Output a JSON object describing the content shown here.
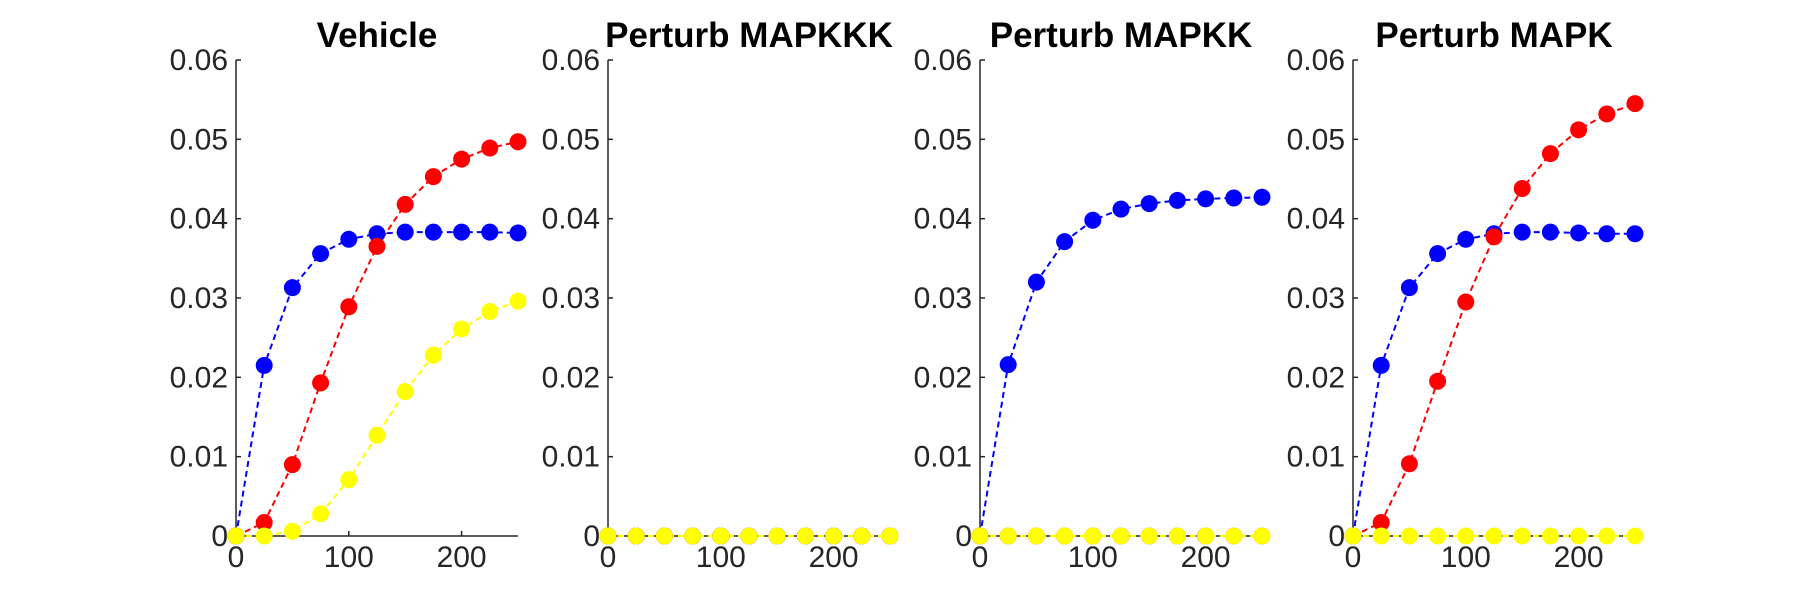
{
  "chart_data": [
    {
      "type": "line",
      "title": "Vehicle",
      "xlabel": "",
      "ylabel": "",
      "xlim": [
        0,
        250
      ],
      "ylim": [
        0,
        0.06
      ],
      "xticks": [
        "0",
        "100",
        "200"
      ],
      "yticks": [
        "0",
        "0.01",
        "0.02",
        "0.03",
        "0.04",
        "0.05",
        "0.06"
      ],
      "grid": false,
      "x": [
        0,
        25,
        50,
        75,
        100,
        125,
        150,
        175,
        200,
        225,
        250
      ],
      "series": [
        {
          "name": "blue",
          "color": "#0000ff",
          "values": [
            0,
            0.0215,
            0.0313,
            0.0356,
            0.0374,
            0.0381,
            0.0383,
            0.0383,
            0.0383,
            0.0383,
            0.0382
          ]
        },
        {
          "name": "red",
          "color": "#ff0000",
          "values": [
            0,
            0.0017,
            0.009,
            0.0193,
            0.0289,
            0.0365,
            0.0418,
            0.0453,
            0.0475,
            0.0489,
            0.0497
          ]
        },
        {
          "name": "yellow",
          "color": "#ffff00",
          "values": [
            0,
            0,
            0.0006,
            0.0028,
            0.0071,
            0.0127,
            0.0182,
            0.0228,
            0.0261,
            0.0283,
            0.0296
          ]
        }
      ]
    },
    {
      "type": "line",
      "title": "Perturb MAPKKK",
      "xlabel": "",
      "ylabel": "",
      "xlim": [
        0,
        250
      ],
      "ylim": [
        0,
        0.06
      ],
      "xticks": [
        "0",
        "100",
        "200"
      ],
      "yticks": [
        "0",
        "0.01",
        "0.02",
        "0.03",
        "0.04",
        "0.05",
        "0.06"
      ],
      "grid": false,
      "x": [
        0,
        25,
        50,
        75,
        100,
        125,
        150,
        175,
        200,
        225,
        250
      ],
      "series": [
        {
          "name": "blue",
          "color": "#0000ff",
          "values": [
            0,
            0,
            0,
            0,
            0,
            0,
            0,
            0,
            0,
            0,
            0
          ]
        },
        {
          "name": "red",
          "color": "#ff0000",
          "values": [
            0,
            0,
            0,
            0,
            0,
            0,
            0,
            0,
            0,
            0,
            0
          ]
        },
        {
          "name": "yellow",
          "color": "#ffff00",
          "values": [
            0,
            0,
            0,
            0,
            0,
            0,
            0,
            0,
            0,
            0,
            0
          ]
        }
      ]
    },
    {
      "type": "line",
      "title": "Perturb MAPKK",
      "xlabel": "",
      "ylabel": "",
      "xlim": [
        0,
        250
      ],
      "ylim": [
        0,
        0.06
      ],
      "xticks": [
        "0",
        "100",
        "200"
      ],
      "yticks": [
        "0",
        "0.01",
        "0.02",
        "0.03",
        "0.04",
        "0.05",
        "0.06"
      ],
      "grid": false,
      "x": [
        0,
        25,
        50,
        75,
        100,
        125,
        150,
        175,
        200,
        225,
        250
      ],
      "series": [
        {
          "name": "blue",
          "color": "#0000ff",
          "values": [
            0,
            0.0216,
            0.032,
            0.0371,
            0.0398,
            0.0412,
            0.0419,
            0.0423,
            0.0425,
            0.0426,
            0.0427
          ]
        },
        {
          "name": "red",
          "color": "#ff0000",
          "values": [
            0,
            0,
            0,
            0,
            0,
            0,
            0,
            0,
            0,
            0,
            0
          ]
        },
        {
          "name": "yellow",
          "color": "#ffff00",
          "values": [
            0,
            0,
            0,
            0,
            0,
            0,
            0,
            0,
            0,
            0,
            0
          ]
        }
      ]
    },
    {
      "type": "line",
      "title": "Perturb MAPK",
      "xlabel": "",
      "ylabel": "",
      "xlim": [
        0,
        250
      ],
      "ylim": [
        0,
        0.06
      ],
      "xticks": [
        "0",
        "100",
        "200"
      ],
      "yticks": [
        "0",
        "0.01",
        "0.02",
        "0.03",
        "0.04",
        "0.05",
        "0.06"
      ],
      "grid": false,
      "x": [
        0,
        25,
        50,
        75,
        100,
        125,
        150,
        175,
        200,
        225,
        250
      ],
      "series": [
        {
          "name": "blue",
          "color": "#0000ff",
          "values": [
            0,
            0.0215,
            0.0313,
            0.0356,
            0.0374,
            0.0381,
            0.0383,
            0.0383,
            0.0382,
            0.0381,
            0.0381
          ]
        },
        {
          "name": "red",
          "color": "#ff0000",
          "values": [
            0,
            0.0017,
            0.0091,
            0.0195,
            0.0295,
            0.0377,
            0.0438,
            0.0482,
            0.0512,
            0.0532,
            0.0545
          ]
        },
        {
          "name": "yellow",
          "color": "#ffff00",
          "values": [
            0,
            0,
            0,
            0,
            0,
            0,
            0,
            0,
            0,
            0,
            0
          ]
        }
      ]
    }
  ]
}
